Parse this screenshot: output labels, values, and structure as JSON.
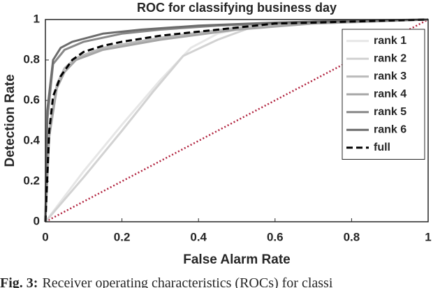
{
  "chart_data": {
    "type": "line",
    "title": "ROC for classifying business day",
    "xlabel": "False Alarm Rate",
    "ylabel": "Detection Rate",
    "xlim": [
      0,
      1
    ],
    "ylim": [
      0,
      1
    ],
    "xticks": [
      0,
      0.2,
      0.4,
      0.6,
      0.8,
      1
    ],
    "yticks": [
      0,
      0.2,
      0.4,
      0.6,
      0.8,
      1
    ],
    "legend": "upper right",
    "series": [
      {
        "name": "rank 1",
        "color": "#e6e6e6",
        "dash": "solid",
        "x": [
          0,
          0.1,
          0.2,
          0.3,
          0.38,
          0.45,
          0.55,
          0.7,
          1
        ],
        "values": [
          0,
          0.25,
          0.48,
          0.7,
          0.86,
          0.93,
          0.97,
          0.99,
          1
        ]
      },
      {
        "name": "rank 2",
        "color": "#d2d2d2",
        "dash": "solid",
        "x": [
          0,
          0.1,
          0.2,
          0.28,
          0.36,
          0.45,
          0.55,
          0.7,
          1
        ],
        "values": [
          0,
          0.22,
          0.45,
          0.64,
          0.82,
          0.9,
          0.97,
          0.99,
          1
        ]
      },
      {
        "name": "rank 3",
        "color": "#bababa",
        "dash": "solid",
        "x": [
          0,
          0.01,
          0.03,
          0.05,
          0.08,
          0.15,
          0.3,
          0.5,
          0.7,
          1
        ],
        "values": [
          0,
          0.45,
          0.68,
          0.76,
          0.81,
          0.86,
          0.91,
          0.96,
          0.98,
          1
        ]
      },
      {
        "name": "rank 4",
        "color": "#a6a6a6",
        "dash": "solid",
        "x": [
          0,
          0.01,
          0.03,
          0.05,
          0.08,
          0.15,
          0.3,
          0.5,
          0.7,
          1
        ],
        "values": [
          0,
          0.42,
          0.66,
          0.74,
          0.8,
          0.85,
          0.9,
          0.95,
          0.98,
          1
        ]
      },
      {
        "name": "rank 5",
        "color": "#888888",
        "dash": "solid",
        "x": [
          0,
          0.005,
          0.02,
          0.05,
          0.1,
          0.2,
          0.3,
          0.45,
          0.6,
          0.8,
          1
        ],
        "values": [
          0,
          0.5,
          0.78,
          0.85,
          0.89,
          0.93,
          0.95,
          0.97,
          0.98,
          0.99,
          1
        ]
      },
      {
        "name": "rank 6",
        "color": "#6c6c6c",
        "dash": "solid",
        "x": [
          0,
          0.005,
          0.02,
          0.04,
          0.07,
          0.15,
          0.25,
          0.4,
          0.6,
          0.8,
          1
        ],
        "values": [
          0,
          0.55,
          0.8,
          0.86,
          0.89,
          0.93,
          0.95,
          0.97,
          0.985,
          0.995,
          1
        ]
      },
      {
        "name": "full",
        "color": "#000000",
        "dash": "dashed",
        "x": [
          0,
          0.01,
          0.02,
          0.04,
          0.07,
          0.1,
          0.15,
          0.2,
          0.3,
          0.4,
          0.5,
          0.6,
          0.8,
          1
        ],
        "values": [
          0,
          0.45,
          0.62,
          0.72,
          0.8,
          0.84,
          0.87,
          0.89,
          0.92,
          0.94,
          0.96,
          0.98,
          0.99,
          1
        ]
      }
    ],
    "diagonal": {
      "color": "#b0203c",
      "x": [
        0,
        1
      ],
      "values": [
        0,
        1
      ]
    }
  },
  "caption": {
    "label": "Fig. 3:",
    "text": "Receiver operating characteristics (ROCs) for classi"
  }
}
